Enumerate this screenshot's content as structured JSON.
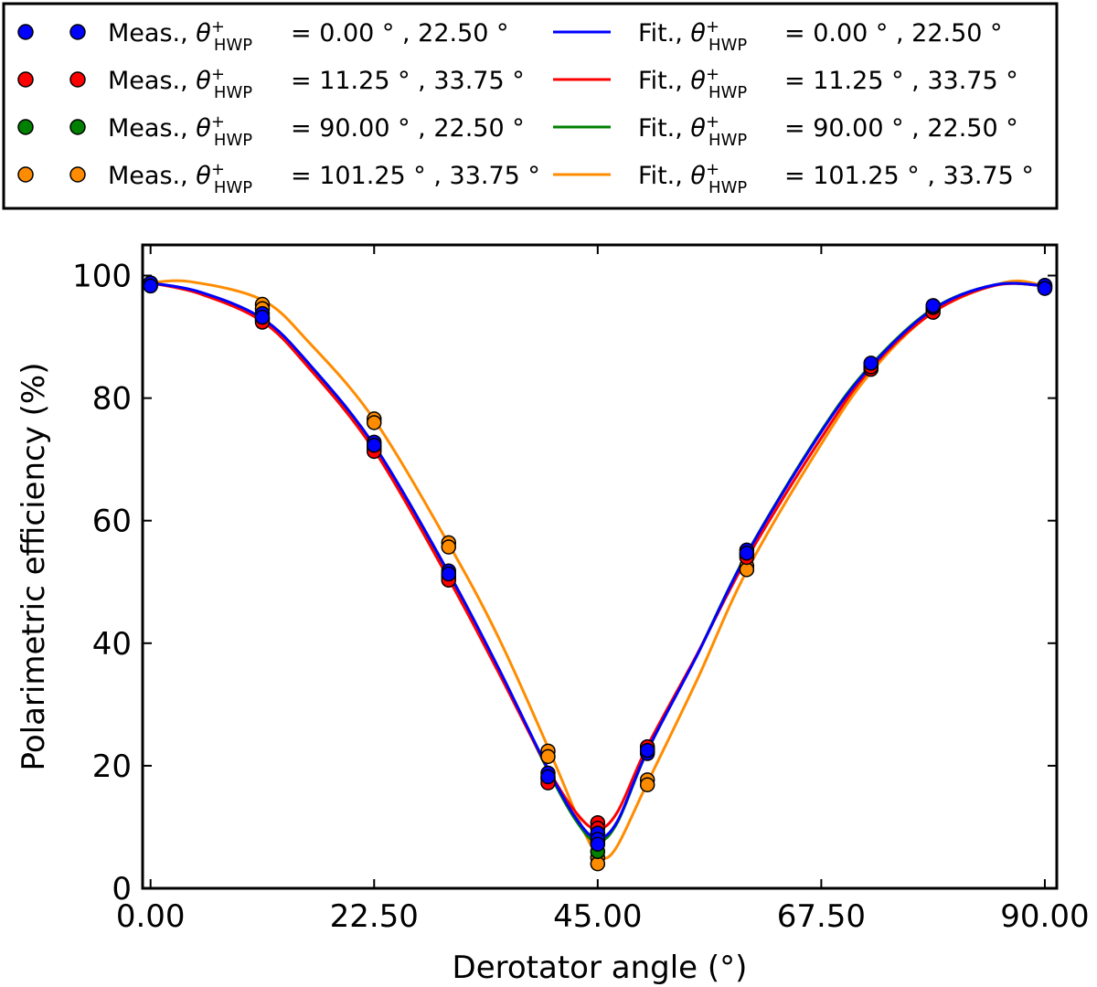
{
  "chart_data": {
    "type": "scatter",
    "title": "",
    "xlabel": "Derotator angle (°)",
    "ylabel": "Polarimetric efficiency (%)",
    "xlim": [
      -0.8,
      91.2
    ],
    "ylim": [
      0,
      105
    ],
    "x_ticks": [
      0,
      22.5,
      45,
      67.5,
      90
    ],
    "x_tick_labels": [
      "0.00",
      "22.50",
      "45.00",
      "67.50",
      "90.00"
    ],
    "y_ticks": [
      0,
      20,
      40,
      60,
      80,
      100
    ],
    "y_tick_labels": [
      "0",
      "20",
      "40",
      "60",
      "80",
      "100"
    ],
    "legend_position": "above plot",
    "legend": {
      "theta_symbol": "θ",
      "theta_sup": "+",
      "theta_sub": "HWP",
      "entries": [
        {
          "prefix": "Meas.,",
          "value": "= 0.00 ° , 22.50 °",
          "kind": "marker",
          "color": "#0000ff"
        },
        {
          "prefix": "Meas.,",
          "value": "= 11.25 ° , 33.75 °",
          "kind": "marker",
          "color": "#ff0000"
        },
        {
          "prefix": "Meas.,",
          "value": "= 90.00 ° , 22.50 °",
          "kind": "marker",
          "color": "#008000"
        },
        {
          "prefix": "Meas.,",
          "value": "= 101.25 ° , 33.75 °",
          "kind": "marker",
          "color": "#ff8c00"
        },
        {
          "prefix": "Fit.,",
          "value": "= 0.00 ° , 22.50 °",
          "kind": "line",
          "color": "#0000ff"
        },
        {
          "prefix": "Fit.,",
          "value": "= 11.25 ° , 33.75 °",
          "kind": "line",
          "color": "#ff0000"
        },
        {
          "prefix": "Fit.,",
          "value": "= 90.00 ° , 22.50 °",
          "kind": "line",
          "color": "#008000"
        },
        {
          "prefix": "Fit.,",
          "value": "= 101.25 ° , 33.75 °",
          "kind": "line",
          "color": "#ff8c00"
        }
      ]
    },
    "fit_series": [
      {
        "name": "Fit., 0.00, 22.50",
        "color": "#0000ff",
        "x": [
          0,
          5,
          11.25,
          16,
          22.5,
          30,
          35,
          40,
          43,
          45,
          47,
          50,
          55,
          60,
          67.5,
          72.5,
          78.75,
          85,
          90
        ],
        "y": [
          98.8,
          97.3,
          93.0,
          85.5,
          72.3,
          51.5,
          36.0,
          19.5,
          11.0,
          8.2,
          11.0,
          22.5,
          38.0,
          54.5,
          74.5,
          85.2,
          94.5,
          98.5,
          98.3
        ]
      },
      {
        "name": "Fit., 11.25, 33.75",
        "color": "#ff0000",
        "x": [
          0,
          5,
          11.25,
          16,
          22.5,
          30,
          35,
          40,
          43,
          45,
          47,
          50,
          55,
          60,
          67.5,
          72.5,
          78.75,
          85,
          90
        ],
        "y": [
          98.8,
          97.0,
          92.5,
          84.8,
          71.5,
          50.5,
          35.3,
          19.5,
          12.0,
          9.7,
          12.5,
          23.2,
          38.2,
          53.8,
          73.5,
          84.8,
          94.0,
          98.4,
          98.3
        ]
      },
      {
        "name": "Fit., 90.00, 22.50",
        "color": "#008000",
        "x": [
          0,
          5,
          11.25,
          16,
          22.5,
          30,
          35,
          40,
          43,
          45,
          47,
          50,
          55,
          60,
          67.5,
          72.5,
          78.75,
          85,
          90
        ],
        "y": [
          98.8,
          97.2,
          92.8,
          85.3,
          72.0,
          51.2,
          35.8,
          19.2,
          10.6,
          7.6,
          10.8,
          22.4,
          38.1,
          54.6,
          74.7,
          85.4,
          94.6,
          98.5,
          98.3
        ]
      },
      {
        "name": "Fit., 101.25, 33.75",
        "color": "#ff8c00",
        "x": [
          0,
          4,
          11.25,
          16,
          22.5,
          30,
          35,
          40,
          43,
          44.5,
          45.5,
          47,
          50,
          55,
          60,
          67.5,
          72.5,
          78.75,
          86,
          90
        ],
        "y": [
          98.8,
          99.0,
          96.0,
          89.0,
          76.5,
          56.2,
          41.0,
          23.0,
          11.5,
          6.5,
          4.8,
          7.0,
          17.2,
          34.0,
          51.8,
          72.5,
          84.2,
          94.0,
          98.9,
          98.3
        ]
      }
    ],
    "measured_series": [
      {
        "name": "Meas., 101.25, 33.75",
        "color": "#ff8c00",
        "x": [
          0,
          11.25,
          11.25,
          22.5,
          22.5,
          30,
          30,
          40,
          40,
          45,
          45,
          50,
          50,
          60,
          60,
          72.5,
          78.75,
          90
        ],
        "y": [
          98.6,
          95.3,
          94.6,
          76.6,
          76.0,
          56.4,
          55.7,
          22.4,
          21.5,
          5.0,
          4.0,
          17.7,
          16.9,
          52.6,
          52.0,
          85.2,
          94.5,
          98.0
        ]
      },
      {
        "name": "Meas., 90.00, 22.50",
        "color": "#008000",
        "x": [
          0,
          11.25,
          22.5,
          30,
          40,
          45,
          45,
          50,
          60,
          72.5,
          78.75,
          90
        ],
        "y": [
          98.5,
          93.0,
          72.2,
          51.0,
          18.0,
          7.5,
          6.0,
          22.3,
          54.5,
          85.5,
          94.6,
          98.3
        ]
      },
      {
        "name": "Meas., 11.25, 33.75",
        "color": "#ff0000",
        "x": [
          0,
          11.25,
          11.25,
          22.5,
          22.5,
          30,
          30,
          40,
          40,
          45,
          45,
          50,
          50,
          60,
          72.5,
          72.5,
          78.75,
          90
        ],
        "y": [
          98.5,
          92.8,
          92.4,
          71.8,
          71.3,
          50.8,
          50.3,
          17.8,
          17.2,
          10.7,
          9.8,
          22.8,
          23.1,
          54.0,
          84.7,
          85.1,
          94.0,
          98.1
        ]
      },
      {
        "name": "Meas., 0.00, 22.50",
        "color": "#0000ff",
        "x": [
          0,
          0,
          11.25,
          11.25,
          22.5,
          22.5,
          30,
          30,
          40,
          40,
          45,
          45,
          45,
          50,
          50,
          60,
          60,
          72.5,
          78.75,
          78.75,
          90,
          90
        ],
        "y": [
          98.8,
          98.3,
          93.8,
          93.2,
          72.8,
          72.3,
          51.8,
          51.3,
          18.8,
          18.2,
          9.0,
          8.0,
          7.2,
          22.0,
          22.5,
          55.2,
          54.7,
          85.7,
          94.8,
          95.1,
          98.4,
          97.9
        ]
      }
    ]
  }
}
